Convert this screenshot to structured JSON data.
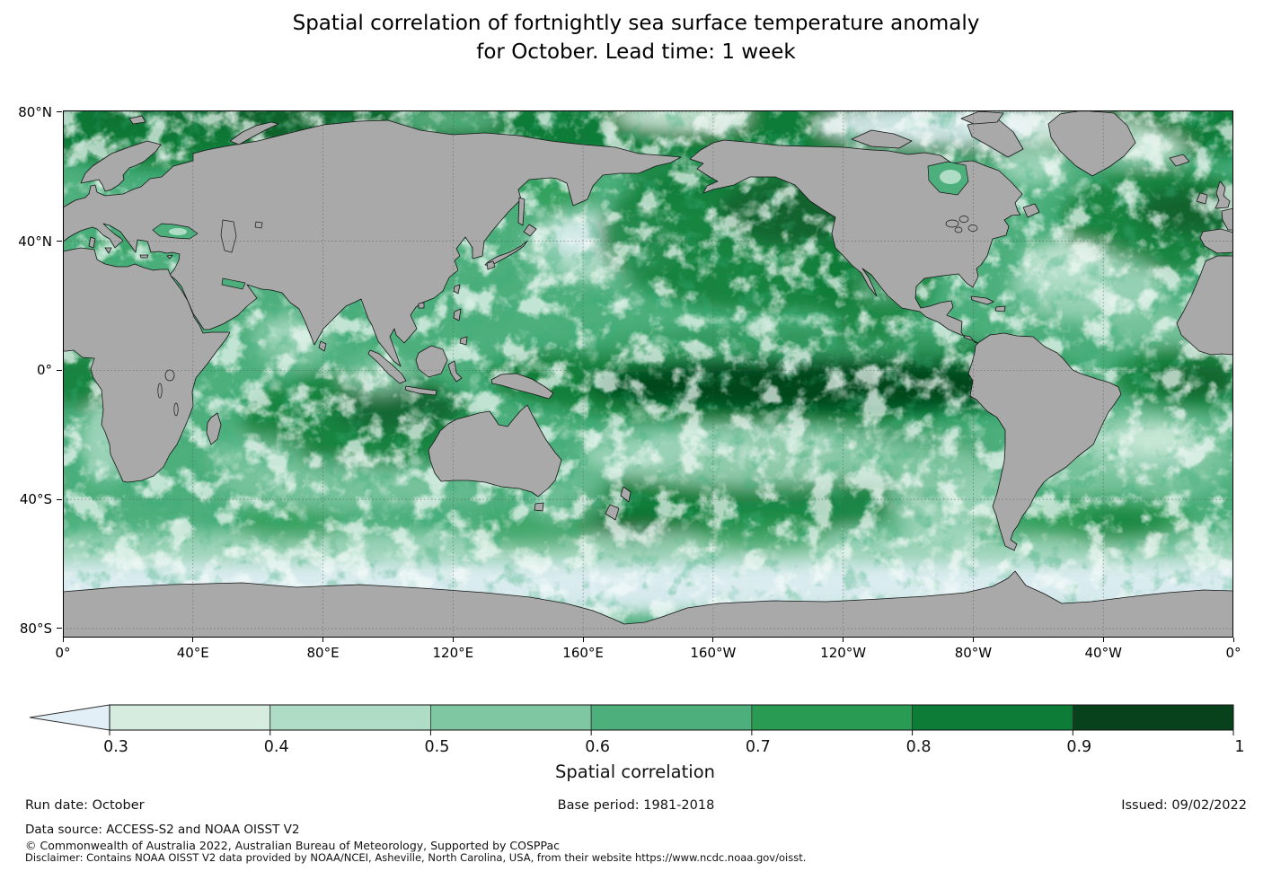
{
  "title": {
    "line1": "Spatial correlation of fortnightly sea surface temperature anomaly",
    "line2": "for October. Lead time: 1 week"
  },
  "axes": {
    "lon_labels": [
      "0°",
      "40°E",
      "80°E",
      "120°E",
      "160°E",
      "160°W",
      "120°W",
      "80°W",
      "40°W",
      "0°"
    ],
    "lat_labels": [
      "80°N",
      "40°N",
      "0°",
      "40°S",
      "80°S"
    ],
    "lat_values": [
      80,
      40,
      0,
      -40,
      -80
    ]
  },
  "colorbar": {
    "label": "Spatial correlation",
    "tick_labels": [
      "0.3",
      "0.4",
      "0.5",
      "0.6",
      "0.7",
      "0.8",
      "0.9",
      "1"
    ],
    "segment_colors": [
      "#d5ecdf",
      "#aedcc5",
      "#7fc7a3",
      "#4caf7c",
      "#2a9b52",
      "#0c7c37",
      "#07421c"
    ],
    "under_color": "#e2eff6",
    "extend": "min"
  },
  "footer": {
    "run_date": "Run date: October",
    "base_period": "Base period: 1981-2018",
    "issued": "Issued: 09/02/2022",
    "data_source": "Data source: ACCESS-S2 and NOAA OISST V2",
    "copyright": "© Commonwealth of Australia 2022, Australian Bureau of Meteorology, Supported by COSPPac",
    "disclaimer": "Disclaimer: Contains NOAA OISST V2 data provided by NOAA/NCEI, Asheville, North Carolina, USA, from their website https://www.ncdc.noaa.gov/oisst."
  },
  "map_style": {
    "land_color": "#a9a9a9",
    "coastline_color": "#151515",
    "gridline_interval_deg": 40
  },
  "chart_data": {
    "type": "heatmap",
    "title": "Spatial correlation of fortnightly sea surface temperature anomaly for October. Lead time: 1 week",
    "projection": "equirectangular, Pacific-centered (0°E to 360°E)",
    "lon_range_deg_east": [
      0,
      360
    ],
    "lat_range": [
      -82,
      80.5
    ],
    "colorbar_label": "Spatial correlation",
    "levels": [
      0.3,
      0.4,
      0.5,
      0.6,
      0.7,
      0.8,
      0.9,
      1.0
    ],
    "colors_low_to_high": [
      "#e2eff6",
      "#d5ecdf",
      "#aedcc5",
      "#7fc7a3",
      "#4caf7c",
      "#2a9b52",
      "#0c7c37",
      "#07421c"
    ],
    "extend_arrow": "below 0.3",
    "grid": true,
    "regions_approx": [
      {
        "region": "Equatorial Pacific (160E-80W, 0-10S)",
        "correlation": "0.9-1.0"
      },
      {
        "region": "North Pacific subpolar gyre",
        "correlation": "0.8-0.9"
      },
      {
        "region": "Northwest Pacific east of Japan",
        "correlation": "0.3-0.5"
      },
      {
        "region": "Northeast Pacific off North America",
        "correlation": "0.8-0.9"
      },
      {
        "region": "Arctic seas",
        "correlation": "0.7-0.9"
      },
      {
        "region": "Chukchi / Canadian Arctic",
        "correlation": "below 0.3-0.4"
      },
      {
        "region": "North Atlantic subpolar",
        "correlation": "0.8-0.9"
      },
      {
        "region": "Gulf Stream off Newfoundland",
        "correlation": "below 0.4"
      },
      {
        "region": "Subtropical North Atlantic (~30N)",
        "correlation": "0.4-0.6"
      },
      {
        "region": "Equatorial Atlantic",
        "correlation": "0.8-0.9"
      },
      {
        "region": "South Indian Ocean subtropics",
        "correlation": "0.8-0.9"
      },
      {
        "region": "Indian Ocean 30-40S",
        "correlation": "0.4-0.6"
      },
      {
        "region": "Southwest Pacific east of New Zealand",
        "correlation": "0.8-0.9"
      },
      {
        "region": "Southeast Pacific ~30S",
        "correlation": "0.3-0.5"
      },
      {
        "region": "Subtropical South Atlantic",
        "correlation": "0.4-0.6"
      },
      {
        "region": "Southern Ocean near Antarctica",
        "correlation": "below 0.3"
      }
    ]
  }
}
